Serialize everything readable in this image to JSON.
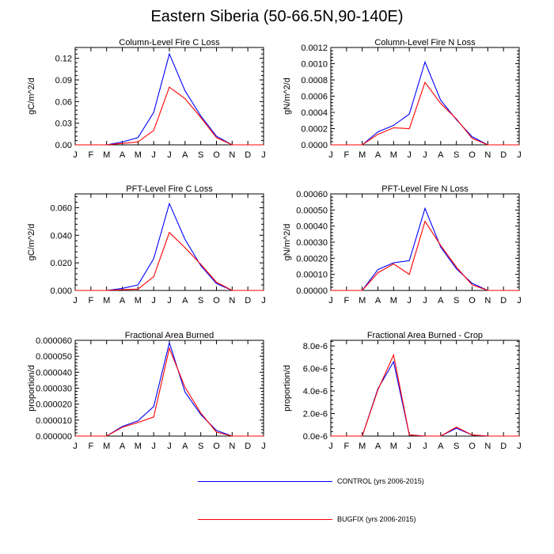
{
  "title": "Eastern Siberia (50-66.5N,90-140E)",
  "colors": {
    "control": "#0000ff",
    "bugfix": "#ff0000",
    "axis": "#000000"
  },
  "legend": [
    {
      "label": "CONTROL (yrs 2006-2015)",
      "color": "#0000ff"
    },
    {
      "label": "BUGFIX (yrs 2006-2015)",
      "color": "#ff0000"
    }
  ],
  "chart_data": [
    {
      "type": "line",
      "title": "Column-Level Fire C Loss",
      "ylabel": "gC/m^2/d",
      "xlabel": "",
      "categories": [
        "J",
        "F",
        "M",
        "A",
        "M",
        "J",
        "J",
        "A",
        "S",
        "O",
        "N",
        "D",
        "J"
      ],
      "ylim": [
        0,
        0.135
      ],
      "yticks": [
        0,
        0.03,
        0.06,
        0.09,
        0.12
      ],
      "yticklabels": [
        "0.00",
        "0.03",
        "0.06",
        "0.09",
        "0.12"
      ],
      "series": [
        {
          "name": "CONTROL (yrs 2006-2015)",
          "values": [
            0,
            0,
            0,
            0.004,
            0.01,
            0.045,
            0.126,
            0.075,
            0.04,
            0.012,
            0,
            0,
            0
          ]
        },
        {
          "name": "BUGFIX (yrs 2006-2015)",
          "values": [
            0,
            0,
            0,
            0.002,
            0.004,
            0.02,
            0.08,
            0.064,
            0.038,
            0.01,
            0,
            0,
            0
          ]
        }
      ]
    },
    {
      "type": "line",
      "title": "Column-Level Fire N Loss",
      "ylabel": "gN/m^2/d",
      "xlabel": "",
      "categories": [
        "J",
        "F",
        "M",
        "A",
        "M",
        "J",
        "J",
        "A",
        "S",
        "O",
        "N",
        "D",
        "J"
      ],
      "ylim": [
        0,
        0.0012
      ],
      "yticks": [
        0,
        0.0002,
        0.0004,
        0.0006,
        0.0008,
        0.001,
        0.0012
      ],
      "yticklabels": [
        "0.0000",
        "0.0002",
        "0.0004",
        "0.0006",
        "0.0008",
        "0.0010",
        "0.0012"
      ],
      "series": [
        {
          "name": "CONTROL (yrs 2006-2015)",
          "values": [
            0,
            0,
            0,
            0.00016,
            0.00024,
            0.00038,
            0.00102,
            0.00055,
            0.00031,
            0.0001,
            0,
            0,
            0
          ]
        },
        {
          "name": "BUGFIX (yrs 2006-2015)",
          "values": [
            0,
            0,
            0,
            0.00013,
            0.00021,
            0.0002,
            0.00077,
            0.00051,
            0.00032,
            8e-05,
            0,
            0,
            0
          ]
        }
      ]
    },
    {
      "type": "line",
      "title": "PFT-Level Fire C Loss",
      "ylabel": "gC/m^2/d",
      "xlabel": "",
      "categories": [
        "J",
        "F",
        "M",
        "A",
        "M",
        "J",
        "J",
        "A",
        "S",
        "O",
        "N",
        "D",
        "J"
      ],
      "ylim": [
        0,
        0.07
      ],
      "yticks": [
        0,
        0.02,
        0.04,
        0.06
      ],
      "yticklabels": [
        "0.000",
        "0.020",
        "0.040",
        "0.060"
      ],
      "series": [
        {
          "name": "CONTROL (yrs 2006-2015)",
          "values": [
            0,
            0,
            0,
            0.0015,
            0.004,
            0.023,
            0.063,
            0.037,
            0.018,
            0.005,
            0,
            0,
            0
          ]
        },
        {
          "name": "BUGFIX (yrs 2006-2015)",
          "values": [
            0,
            0,
            0,
            0.0005,
            0.001,
            0.01,
            0.042,
            0.031,
            0.019,
            0.006,
            0,
            0,
            0
          ]
        }
      ]
    },
    {
      "type": "line",
      "title": "PFT-Level Fire N Loss",
      "ylabel": "gN/m^2/d",
      "xlabel": "",
      "categories": [
        "J",
        "F",
        "M",
        "A",
        "M",
        "J",
        "J",
        "A",
        "S",
        "O",
        "N",
        "D",
        "J"
      ],
      "ylim": [
        0,
        0.0006
      ],
      "yticks": [
        0,
        0.0001,
        0.0002,
        0.0003,
        0.0004,
        0.0005,
        0.0006
      ],
      "yticklabels": [
        "0.00000",
        "0.00010",
        "0.00020",
        "0.00030",
        "0.00040",
        "0.00050",
        "0.00060"
      ],
      "series": [
        {
          "name": "CONTROL (yrs 2006-2015)",
          "values": [
            0,
            0,
            0,
            0.00013,
            0.000172,
            0.000185,
            0.00051,
            0.00027,
            0.000135,
            4.5e-05,
            0,
            0,
            0
          ]
        },
        {
          "name": "BUGFIX (yrs 2006-2015)",
          "values": [
            0,
            0,
            0,
            0.00011,
            0.000165,
            0.0001,
            0.00043,
            0.00028,
            0.000145,
            3.5e-05,
            0,
            0,
            0
          ]
        }
      ]
    },
    {
      "type": "line",
      "title": "Fractional Area Burned",
      "ylabel": "proportion/d",
      "xlabel": "",
      "categories": [
        "J",
        "F",
        "M",
        "A",
        "M",
        "J",
        "J",
        "A",
        "S",
        "O",
        "N",
        "D",
        "J"
      ],
      "ylim": [
        0,
        6e-05
      ],
      "yticks": [
        0,
        1e-05,
        2e-05,
        3e-05,
        4e-05,
        5e-05,
        6e-05
      ],
      "yticklabels": [
        "0.000000",
        "0.000010",
        "0.000020",
        "0.000030",
        "0.000040",
        "0.000050",
        "0.000060"
      ],
      "series": [
        {
          "name": "CONTROL (yrs 2006-2015)",
          "values": [
            0,
            0,
            0,
            6e-06,
            9.5e-06,
            1.85e-05,
            5.85e-05,
            2.75e-05,
            1.35e-05,
            3.5e-06,
            0,
            0,
            0
          ]
        },
        {
          "name": "BUGFIX (yrs 2006-2015)",
          "values": [
            0,
            0,
            0,
            5.5e-06,
            8.5e-06,
            1.2e-05,
            5.5e-05,
            3.05e-05,
            1.45e-05,
            2.5e-06,
            0,
            0,
            0
          ]
        }
      ]
    },
    {
      "type": "line",
      "title": "Fractional Area Burned - Crop",
      "ylabel": "proportion/d",
      "xlabel": "",
      "categories": [
        "J",
        "F",
        "M",
        "A",
        "M",
        "J",
        "J",
        "A",
        "S",
        "O",
        "N",
        "D",
        "J"
      ],
      "ylim": [
        0,
        8.5e-06
      ],
      "yticks": [
        0,
        2e-06,
        4e-06,
        6e-06,
        8e-06
      ],
      "yticklabels": [
        "0.0e-6",
        "2.0e-6",
        "4.0e-6",
        "6.0e-6",
        "8.0e-6"
      ],
      "series": [
        {
          "name": "CONTROL (yrs 2006-2015)",
          "values": [
            0,
            0,
            0,
            4.2e-06,
            6.6e-06,
            1e-07,
            0,
            0,
            7e-07,
            1e-07,
            0,
            0,
            0
          ]
        },
        {
          "name": "BUGFIX (yrs 2006-2015)",
          "values": [
            0,
            0,
            0,
            4.1e-06,
            7.2e-06,
            1e-07,
            0,
            0,
            8e-07,
            1e-07,
            0,
            0,
            0
          ]
        }
      ]
    }
  ]
}
